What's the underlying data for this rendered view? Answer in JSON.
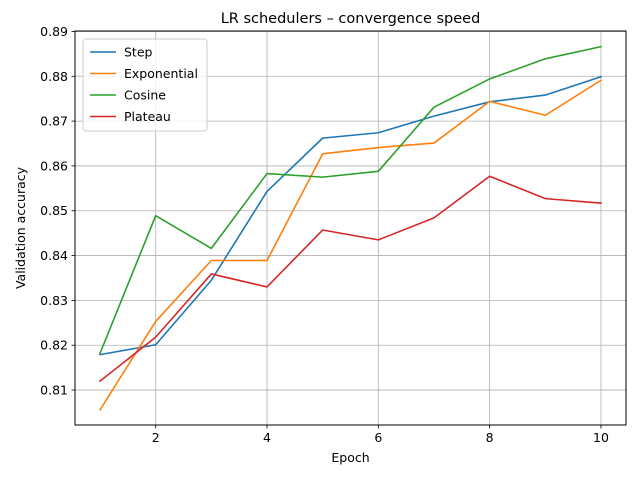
{
  "chart_data": {
    "type": "line",
    "title": "LR schedulers – convergence speed",
    "xlabel": "Epoch",
    "ylabel": "Validation accuracy",
    "xlim": [
      0.55,
      10.45
    ],
    "ylim": [
      0.8022,
      0.8901
    ],
    "xticks": [
      2,
      4,
      6,
      8,
      10
    ],
    "xtick_labels": [
      "2",
      "4",
      "6",
      "8",
      "10"
    ],
    "yticks": [
      0.81,
      0.82,
      0.83,
      0.84,
      0.85,
      0.86,
      0.87,
      0.88,
      0.89
    ],
    "ytick_labels": [
      "0.81",
      "0.82",
      "0.83",
      "0.84",
      "0.85",
      "0.86",
      "0.87",
      "0.88",
      "0.89"
    ],
    "grid": true,
    "legend": "top-left",
    "x": [
      1,
      2,
      3,
      4,
      5,
      6,
      7,
      8,
      9,
      10
    ],
    "series": [
      {
        "name": "Step",
        "color": "#1f77b4",
        "values": [
          0.8179,
          0.8201,
          0.8345,
          0.8543,
          0.8662,
          0.8674,
          0.8711,
          0.8743,
          0.8758,
          0.8799
        ]
      },
      {
        "name": "Exponential",
        "color": "#ff7f0e",
        "values": [
          0.8056,
          0.8253,
          0.8389,
          0.8389,
          0.8627,
          0.8641,
          0.8651,
          0.8744,
          0.8713,
          0.8791
        ]
      },
      {
        "name": "Cosine",
        "color": "#2ca02c",
        "values": [
          0.8182,
          0.8489,
          0.8416,
          0.8583,
          0.8575,
          0.8588,
          0.8731,
          0.8794,
          0.8839,
          0.8866
        ]
      },
      {
        "name": "Plateau",
        "color": "#d62728",
        "values": [
          0.812,
          0.8218,
          0.8359,
          0.833,
          0.8457,
          0.8435,
          0.8484,
          0.8577,
          0.8527,
          0.8517
        ]
      }
    ]
  }
}
